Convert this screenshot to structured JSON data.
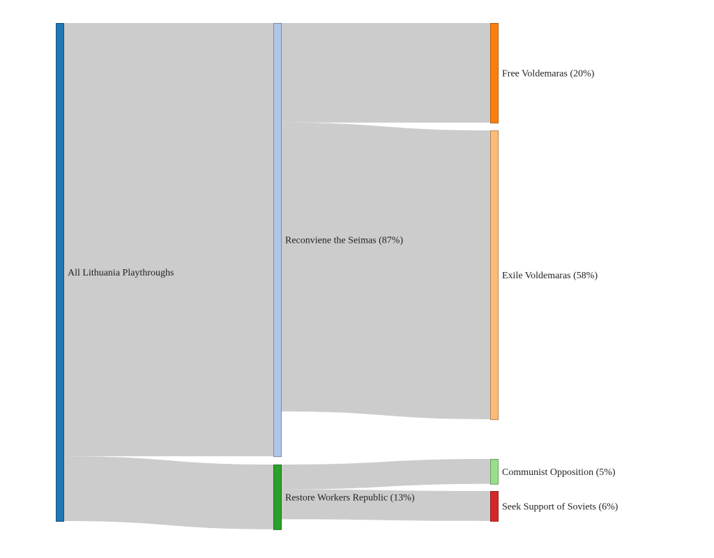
{
  "chart_data": {
    "type": "sankey",
    "unit": "%",
    "nodes": [
      {
        "id": "all",
        "label": "All Lithuania Playthroughs",
        "color": "#1f77b4"
      },
      {
        "id": "recon",
        "label": "Reconviene the Seimas (87%)",
        "color": "#aec7e8"
      },
      {
        "id": "restore",
        "label": "Restore Workers Republic (13%)",
        "color": "#2ca02c"
      },
      {
        "id": "free",
        "label": "Free Voldemaras (20%)",
        "color": "#ff7f0e"
      },
      {
        "id": "exile",
        "label": "Exile Voldemaras (58%)",
        "color": "#ffbb78"
      },
      {
        "id": "comm",
        "label": "Communist Opposition (5%)",
        "color": "#98df8a"
      },
      {
        "id": "soviets",
        "label": "Seek Support of Soviets (6%)",
        "color": "#d62728"
      }
    ],
    "links": [
      {
        "source": "all",
        "target": "recon",
        "value": 87
      },
      {
        "source": "all",
        "target": "restore",
        "value": 13
      },
      {
        "source": "recon",
        "target": "free",
        "value": 20
      },
      {
        "source": "recon",
        "target": "exile",
        "value": 58
      },
      {
        "source": "restore",
        "target": "comm",
        "value": 5
      },
      {
        "source": "restore",
        "target": "soviets",
        "value": 6
      }
    ],
    "link_color": "#cccccc"
  }
}
